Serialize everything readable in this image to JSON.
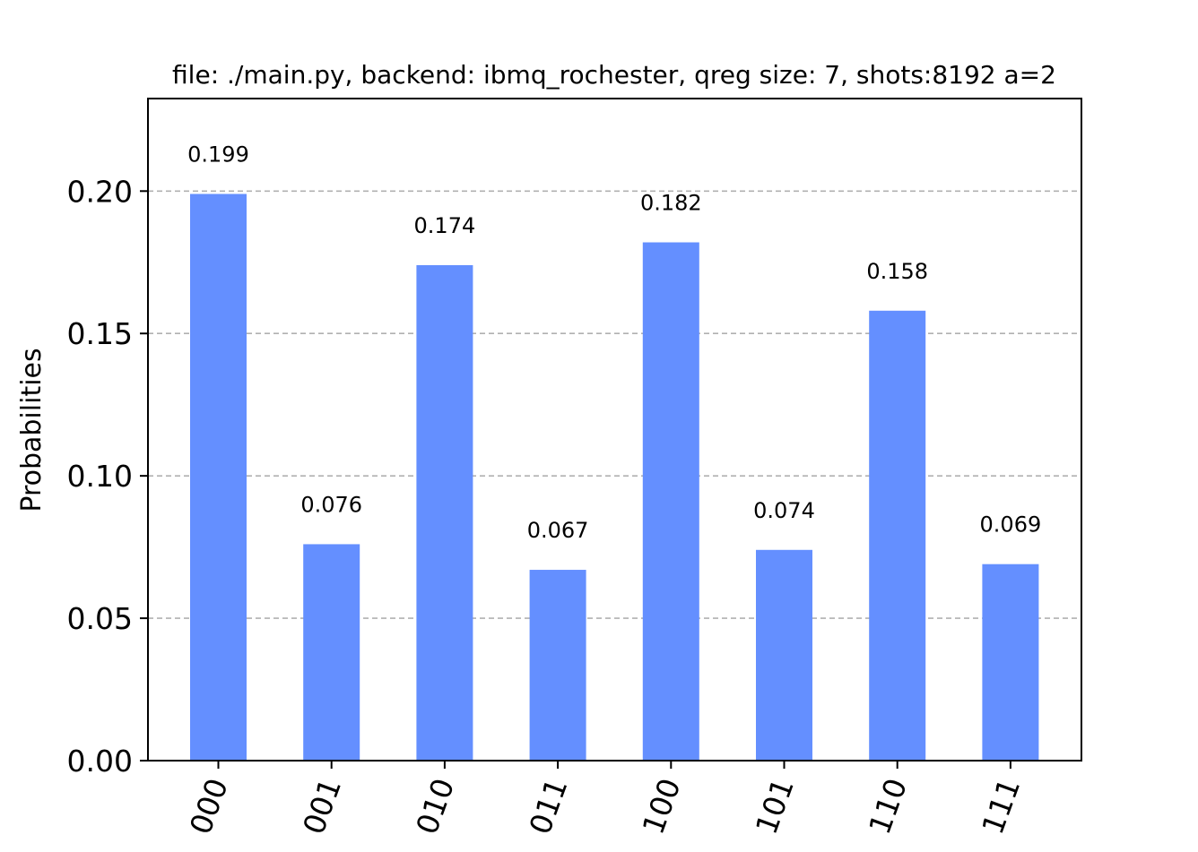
{
  "chart_data": {
    "type": "bar",
    "title": "file: ./main.py, backend: ibmq_rochester, qreg size: 7, shots:8192 a=2",
    "xlabel": "",
    "ylabel": "Probabilities",
    "categories": [
      "000",
      "001",
      "010",
      "011",
      "100",
      "101",
      "110",
      "111"
    ],
    "values": [
      0.199,
      0.076,
      0.174,
      0.067,
      0.182,
      0.074,
      0.158,
      0.069
    ],
    "data_labels": [
      "0.199",
      "0.076",
      "0.174",
      "0.067",
      "0.182",
      "0.074",
      "0.158",
      "0.069"
    ],
    "ylim": [
      0,
      0.2325
    ],
    "yticks": [
      0.0,
      0.05,
      0.1,
      0.15,
      0.2
    ],
    "ytick_labels": [
      "0.00",
      "0.05",
      "0.10",
      "0.15",
      "0.20"
    ],
    "grid": "horizontal dashed",
    "bar_color": "#648fff",
    "grid_color": "#b0b0b0",
    "xtick_rotation_deg": -70
  }
}
